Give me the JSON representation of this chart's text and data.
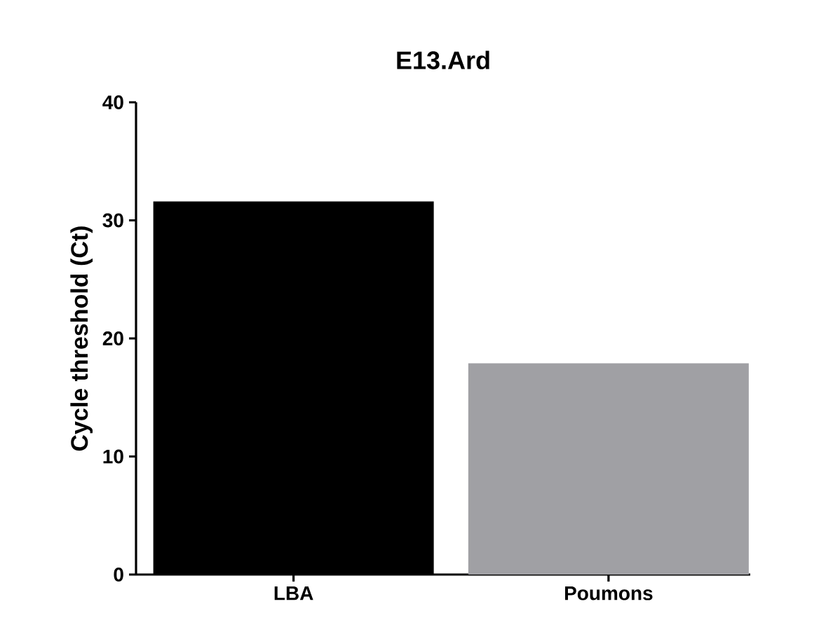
{
  "chart_data": {
    "type": "bar",
    "title": "E13.Ard",
    "ylabel": "Cycle threshold (Ct)",
    "categories": [
      "LBA",
      "Poumons"
    ],
    "values": [
      31.6,
      17.9
    ],
    "colors": [
      "#000000",
      "#a0a0a4"
    ],
    "ylim": [
      0,
      40
    ],
    "yticks": [
      0,
      10,
      20,
      30,
      40
    ],
    "grid": false
  }
}
